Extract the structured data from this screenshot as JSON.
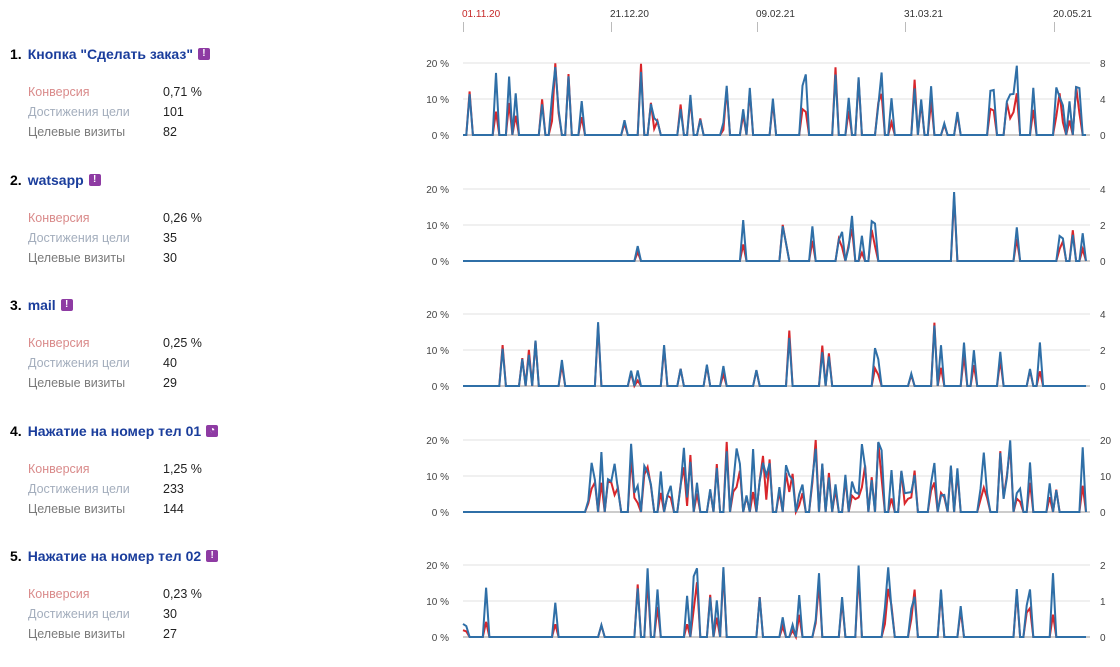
{
  "timeline": {
    "dates": [
      "01.11.20",
      "21.12.20",
      "09.02.21",
      "31.03.21",
      "20.05.21"
    ]
  },
  "colors": {
    "conversion": "#d9262b",
    "visits": "#2f6fa7",
    "grid": "#e2e2e2",
    "axis": "#999999",
    "title": "#1a3d9c"
  },
  "goals": [
    {
      "num": "1.",
      "name": "Кнопка \"Сделать заказ\"",
      "badge_icon": "exclamation-icon",
      "metrics": {
        "conversion_label": "Конверсия",
        "conversion_value": "0,71 %",
        "reach_label": "Достижения цели",
        "reach_value": "101",
        "visits_label": "Целевые визиты",
        "visits_value": "82"
      },
      "left_axis": [
        "20 %",
        "10 %",
        "0 %"
      ],
      "right_axis": [
        "8",
        "4",
        "0"
      ]
    },
    {
      "num": "2.",
      "name": "watsapp",
      "badge_icon": "exclamation-icon",
      "metrics": {
        "conversion_label": "Конверсия",
        "conversion_value": "0,26 %",
        "reach_label": "Достижения цели",
        "reach_value": "35",
        "visits_label": "Целевые визиты",
        "visits_value": "30"
      },
      "left_axis": [
        "20 %",
        "10 %",
        "0 %"
      ],
      "right_axis": [
        "4",
        "2",
        "0"
      ]
    },
    {
      "num": "3.",
      "name": "mail",
      "badge_icon": "exclamation-icon",
      "metrics": {
        "conversion_label": "Конверсия",
        "conversion_value": "0,25 %",
        "reach_label": "Достижения цели",
        "reach_value": "40",
        "visits_label": "Целевые визиты",
        "visits_value": "29"
      },
      "left_axis": [
        "20 %",
        "10 %",
        "0 %"
      ],
      "right_axis": [
        "4",
        "2",
        "0"
      ]
    },
    {
      "num": "4.",
      "name": "Нажатие на номер тел 01",
      "badge_icon": "phone-icon",
      "metrics": {
        "conversion_label": "Конверсия",
        "conversion_value": "1,25 %",
        "reach_label": "Достижения цели",
        "reach_value": "233",
        "visits_label": "Целевые визиты",
        "visits_value": "144"
      },
      "left_axis": [
        "20 %",
        "10 %",
        "0 %"
      ],
      "right_axis": [
        "20",
        "10",
        "0"
      ]
    },
    {
      "num": "5.",
      "name": "Нажатие на номер тел 02",
      "badge_icon": "exclamation-icon",
      "metrics": {
        "conversion_label": "Конверсия",
        "conversion_value": "0,23 %",
        "reach_label": "Достижения цели",
        "reach_value": "30",
        "visits_label": "Целевые визиты",
        "visits_value": "27"
      },
      "left_axis": [
        "20 %",
        "10 %",
        "0 %"
      ],
      "right_axis": [
        "2",
        "1",
        "0"
      ]
    }
  ]
}
